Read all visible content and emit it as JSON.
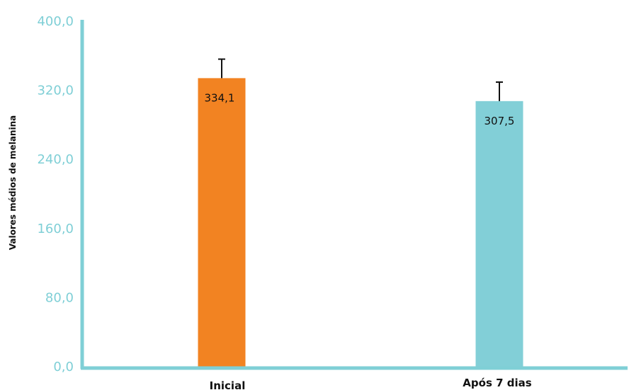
{
  "chart_data": {
    "type": "bar",
    "ylabel": "Valores médios de melanina",
    "xlabel": "",
    "categories": [
      "Inicial",
      "Após 7 dias"
    ],
    "values": [
      334.1,
      307.5
    ],
    "value_labels": [
      "334,1",
      "307,5"
    ],
    "error_plus": [
      22,
      22
    ],
    "bar_colors": [
      "#f28322",
      "#82cfd7"
    ],
    "ylim": [
      0,
      400
    ],
    "yticks": [
      0,
      80,
      160,
      240,
      320,
      400
    ],
    "ytick_labels": [
      "0,0",
      "80,0",
      "160,0",
      "240,0",
      "320,0",
      "400,0"
    ],
    "axis_color": "#7fcfd6",
    "grid": false
  }
}
